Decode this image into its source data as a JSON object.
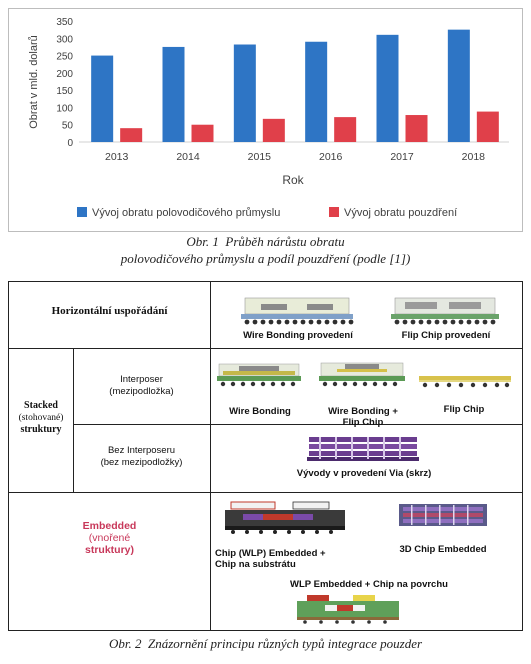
{
  "chart_data": {
    "type": "bar",
    "categories": [
      "2013",
      "2014",
      "2015",
      "2016",
      "2017",
      "2018"
    ],
    "series": [
      {
        "name": "Vývoj obratu polovodičového průmyslu",
        "color": "#2e75c5",
        "values": [
          250,
          275,
          282,
          290,
          310,
          325
        ]
      },
      {
        "name": "Vývoj obratu pouzdření",
        "color": "#e0404a",
        "values": [
          40,
          50,
          67,
          72,
          78,
          88
        ]
      }
    ],
    "xlabel": "Rok",
    "ylabel": "Obrat v mld. dolarů",
    "ylim": [
      0,
      350
    ],
    "yticks": [
      "0",
      "50",
      "100",
      "150",
      "200",
      "250",
      "300",
      "350"
    ],
    "grid": false,
    "legend": "bottom"
  },
  "caption1": {
    "number": "Obr. 1",
    "line1": "Průběh nárůstu obratu",
    "line2": "polovodičového průmyslu a podíl pouzdření (podle [1])"
  },
  "diagram": {
    "horizontal_label": "Horizontální uspořádání",
    "stacked_label_1": "Stacked",
    "stacked_label_2": "(stohované)",
    "stacked_label_3": "struktury",
    "interposer_label_1": "Interposer",
    "interposer_label_2": "(mezipodložka)",
    "nointerposer_label_1": "Bez Interposeru",
    "nointerposer_label_2": "(bez mezipodložky)",
    "embedded_label_1": "Embedded",
    "embedded_label_2": "(vnořené",
    "embedded_label_3": "struktury)",
    "embedded_color": "#c8385a",
    "pkg_wire_bonding_provedeni": "Wire Bonding provedení",
    "pkg_flip_chip_provedeni": "Flip Chip provedení",
    "pkg_wire_bonding": "Wire Bonding",
    "pkg_wb_fc_1": "Wire Bonding +",
    "pkg_wb_fc_2": "Flip Chip",
    "pkg_flip_chip": "Flip Chip",
    "pkg_via": "Vývody v provedení Via (skrz)",
    "pkg_wlp_1": "Chip (WLP) Embedded +",
    "pkg_wlp_2": "Chip na substrátu",
    "pkg_3d": "3D Chip Embedded",
    "pkg_wlp_surface": "WLP Embedded + Chip na povrchu"
  },
  "caption2": {
    "number": "Obr. 2",
    "text": "Znázornění principu různých typů integrace pouzder"
  }
}
